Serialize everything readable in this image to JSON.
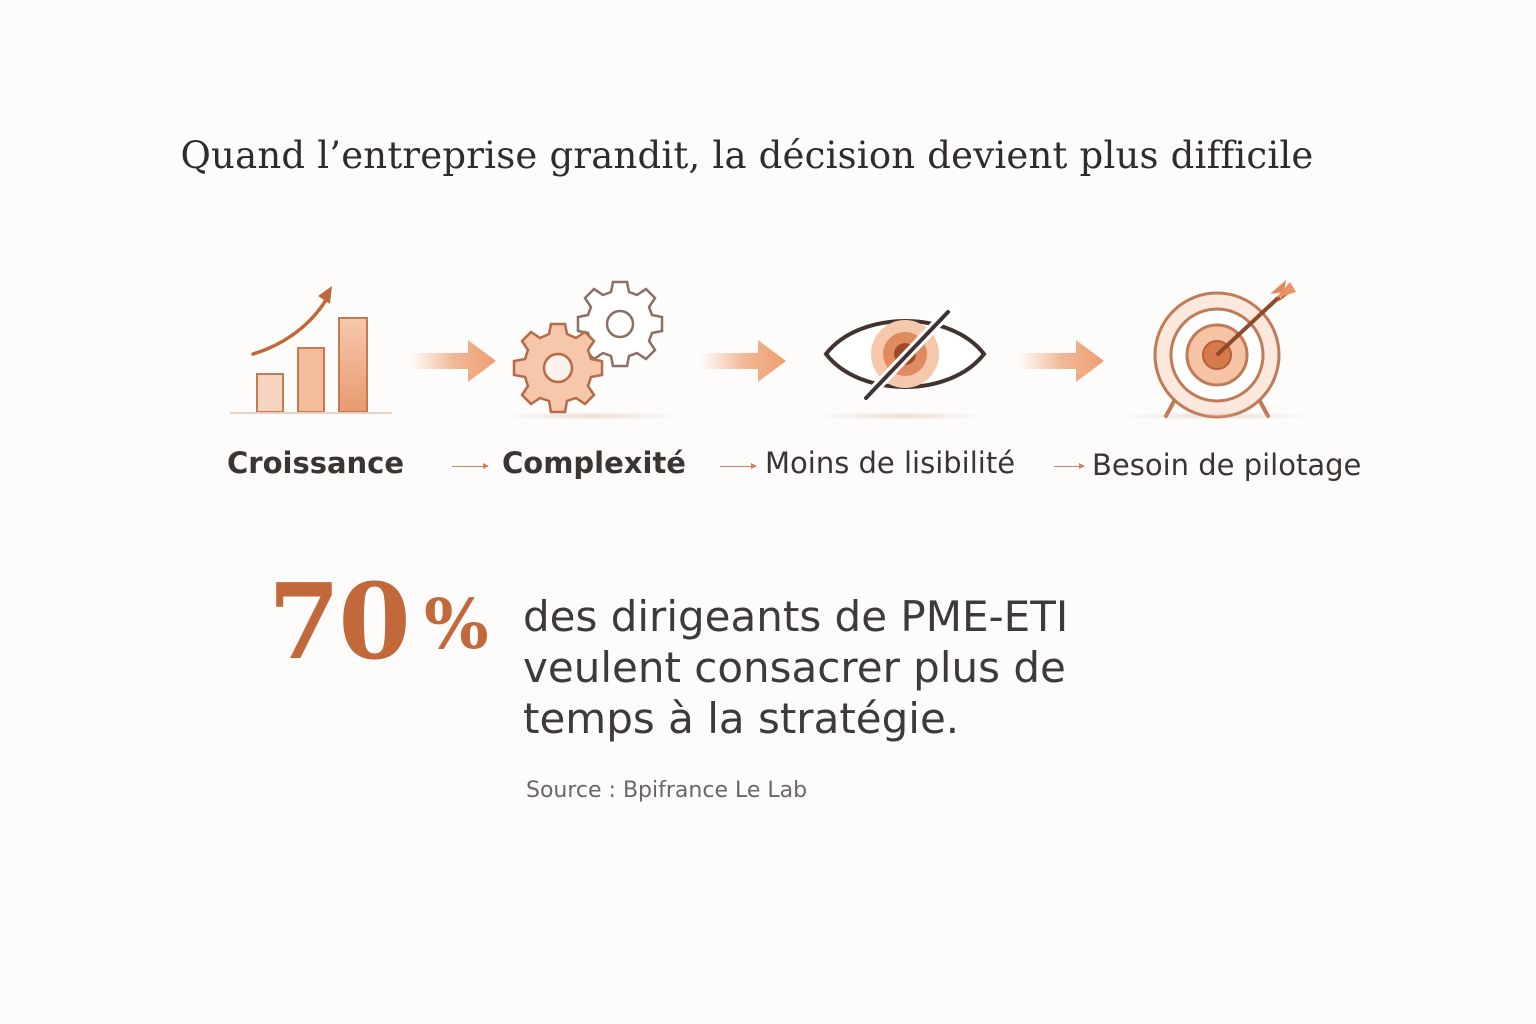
{
  "title": "Quand l’entreprise grandit, la décision devient plus difficile",
  "steps": [
    {
      "label": "Croissance",
      "icon": "growth-chart-icon"
    },
    {
      "label": "Complexité",
      "icon": "gears-icon"
    },
    {
      "label": "Moins de lisibilité",
      "icon": "eye-slash-icon"
    },
    {
      "label": "Besoin de pilotage",
      "icon": "target-icon"
    }
  ],
  "stat": {
    "number": "70",
    "percent": "%",
    "lines": [
      "des dirigeants de PME-ETI",
      "veulent consacrer plus de",
      "temps à la stratégie."
    ]
  },
  "source": "Source : Bpifrance Le Lab",
  "colors": {
    "accent": "#c2693c",
    "accent_light": "#f2c4a8",
    "arrow": "#eea47a",
    "text": "#3a3634"
  }
}
